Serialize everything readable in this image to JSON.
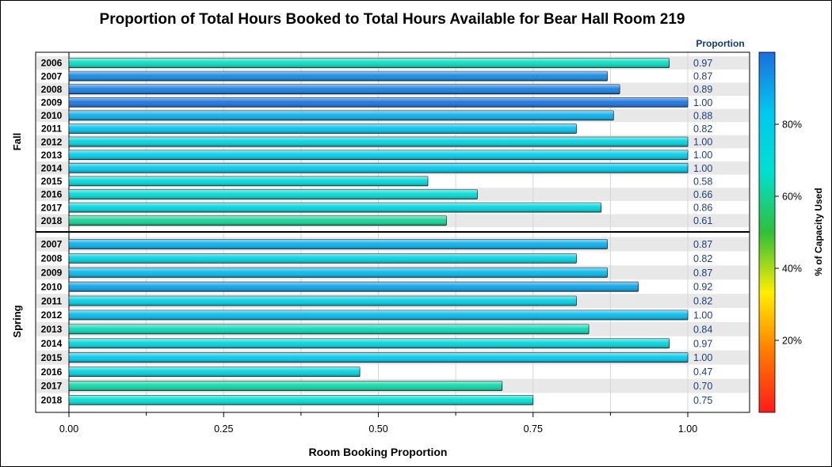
{
  "chart_data": {
    "type": "bar",
    "orientation": "horizontal",
    "title": "Proportion of Total Hours Booked to Total Hours Available for Bear Hall Room 219",
    "xlabel": "Room Booking Proportion",
    "value_column_header": "Proportion",
    "xlim": [
      0,
      1.1
    ],
    "xticks": [
      "0.00",
      "0.25",
      "0.50",
      "0.75",
      "1.00"
    ],
    "xtick_values": [
      0,
      0.25,
      0.5,
      0.75,
      1.0
    ],
    "colorbar": {
      "title": "% of Capacity Used",
      "tick_labels": [
        "20%",
        "40%",
        "60%",
        "80%"
      ],
      "tick_values": [
        20,
        40,
        60,
        80
      ],
      "range": [
        0,
        100
      ],
      "colors": [
        "#ff1a1a",
        "#ff7a00",
        "#ffee00",
        "#2fbf3a",
        "#00e0d0",
        "#00c8f0",
        "#1a6fe0"
      ]
    },
    "panels": [
      {
        "name": "Fall",
        "categories": [
          "2006",
          "2007",
          "2008",
          "2009",
          "2010",
          "2011",
          "2012",
          "2013",
          "2014",
          "2015",
          "2016",
          "2017",
          "2018"
        ],
        "values": [
          0.97,
          0.87,
          0.89,
          1.0,
          0.88,
          0.82,
          1.0,
          1.0,
          1.0,
          0.58,
          0.66,
          0.86,
          0.61
        ],
        "value_labels": [
          "0.97",
          "0.87",
          "0.89",
          "1.00",
          "0.88",
          "0.82",
          "1.00",
          "1.00",
          "1.00",
          "0.58",
          "0.66",
          "0.86",
          "0.61"
        ],
        "capacity_pct": [
          65,
          95,
          97,
          99,
          88,
          84,
          76,
          80,
          82,
          72,
          70,
          74,
          60
        ]
      },
      {
        "name": "Spring",
        "categories": [
          "2007",
          "2008",
          "2009",
          "2010",
          "2011",
          "2012",
          "2013",
          "2014",
          "2015",
          "2016",
          "2017",
          "2018"
        ],
        "values": [
          0.87,
          0.82,
          0.87,
          0.92,
          0.82,
          1.0,
          0.84,
          0.97,
          1.0,
          0.47,
          0.7,
          0.75
        ],
        "value_labels": [
          "0.87",
          "0.82",
          "0.87",
          "0.92",
          "0.82",
          "1.00",
          "0.84",
          "0.97",
          "1.00",
          "0.47",
          "0.70",
          "0.75"
        ],
        "capacity_pct": [
          88,
          76,
          86,
          90,
          78,
          86,
          64,
          73,
          82,
          75,
          62,
          68
        ]
      }
    ]
  }
}
